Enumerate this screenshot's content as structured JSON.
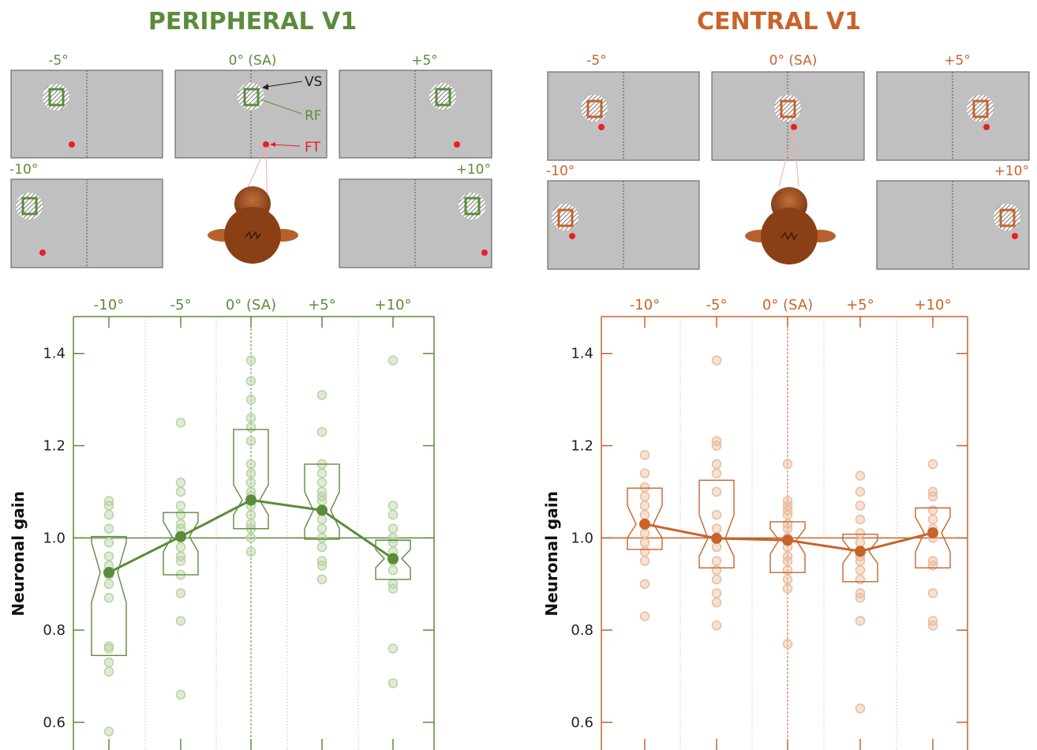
{
  "colors": {
    "peripheral": "#5b8c3a",
    "peripheral_light": "#b9d3a4",
    "central": "#c8632a",
    "central_light": "#eabd9e",
    "monitor_fill": "#c0c0c0",
    "fixation": "#ee1c24",
    "head": "#9a4a1c"
  },
  "panels": [
    {
      "id": "peripheral",
      "title": "PERIPHERAL V1",
      "monitor_labels": {
        "m5": "-5°",
        "c0": "0° (SA)",
        "p5": "+5°",
        "m10": "-10°",
        "p10": "+10°"
      },
      "legend": {
        "vs": "VS",
        "rf": "RF",
        "ft": "FT"
      },
      "chart_data": {
        "type": "boxplot",
        "categories": [
          "-10°",
          "-5°",
          "0° (SA)",
          "+5°",
          "+10°"
        ],
        "ylabel": "Neuronal gain",
        "ylim": [
          0.54,
          1.48
        ],
        "yticks": [
          "0.6",
          "0.8",
          "1.0",
          "1.2",
          "1.4"
        ],
        "reference_line": 1.0,
        "medians": [
          0.925,
          1.003,
          1.082,
          1.06,
          0.955
        ],
        "boxes": [
          {
            "q1": 0.745,
            "q3": 1.003,
            "notch_lo": 0.86,
            "notch_hi": 0.99
          },
          {
            "q1": 0.92,
            "q3": 1.055,
            "notch_lo": 0.97,
            "notch_hi": 1.035
          },
          {
            "q1": 1.02,
            "q3": 1.235,
            "notch_lo": 1.05,
            "notch_hi": 1.115
          },
          {
            "q1": 0.997,
            "q3": 1.16,
            "notch_lo": 1.02,
            "notch_hi": 1.1
          },
          {
            "q1": 0.91,
            "q3": 0.995,
            "notch_lo": 0.935,
            "notch_hi": 0.975
          }
        ],
        "points": [
          [
            1.08,
            1.07,
            1.05,
            1.02,
            0.99,
            0.96,
            0.94,
            0.92,
            0.9,
            0.87,
            0.765,
            0.76,
            0.73,
            0.71,
            0.58
          ],
          [
            1.25,
            1.12,
            1.1,
            1.07,
            1.05,
            1.03,
            1.02,
            1.0,
            0.98,
            0.96,
            0.95,
            0.92,
            0.88,
            0.82,
            0.66
          ],
          [
            1.385,
            1.34,
            1.3,
            1.26,
            1.24,
            1.21,
            1.16,
            1.14,
            1.12,
            1.1,
            1.09,
            1.07,
            1.05,
            1.03,
            1.02,
            1.0,
            0.97
          ],
          [
            1.31,
            1.23,
            1.16,
            1.14,
            1.12,
            1.1,
            1.09,
            1.08,
            1.06,
            1.04,
            1.02,
            1.0,
            0.98,
            0.95,
            0.94,
            0.91
          ],
          [
            1.385,
            1.07,
            1.05,
            1.02,
            1.0,
            0.99,
            0.97,
            0.95,
            0.93,
            0.9,
            0.89,
            0.76,
            0.685
          ]
        ]
      }
    },
    {
      "id": "central",
      "title": "CENTRAL V1",
      "monitor_labels": {
        "m5": "-5°",
        "c0": "0° (SA)",
        "p5": "+5°",
        "m10": "-10°",
        "p10": "+10°"
      },
      "chart_data": {
        "type": "boxplot",
        "categories": [
          "-10°",
          "-5°",
          "0° (SA)",
          "+5°",
          "+10°"
        ],
        "ylabel": "Neuronal gain",
        "ylim": [
          0.54,
          1.48
        ],
        "yticks": [
          "0.6",
          "0.8",
          "1.0",
          "1.2",
          "1.4"
        ],
        "reference_line": 1.0,
        "medians": [
          1.03,
          0.999,
          0.995,
          0.971,
          1.011
        ],
        "boxes": [
          {
            "q1": 0.975,
            "q3": 1.108,
            "notch_lo": 1.0,
            "notch_hi": 1.07
          },
          {
            "q1": 0.935,
            "q3": 1.125,
            "notch_lo": 0.96,
            "notch_hi": 1.05
          },
          {
            "q1": 0.925,
            "q3": 1.035,
            "notch_lo": 0.965,
            "notch_hi": 1.02
          },
          {
            "q1": 0.905,
            "q3": 1.008,
            "notch_lo": 0.945,
            "notch_hi": 0.995
          },
          {
            "q1": 0.935,
            "q3": 1.065,
            "notch_lo": 0.97,
            "notch_hi": 1.045
          }
        ],
        "points": [
          [
            1.18,
            1.14,
            1.11,
            1.09,
            1.07,
            1.05,
            1.03,
            1.01,
            0.99,
            0.97,
            0.95,
            0.9,
            0.83
          ],
          [
            1.385,
            1.21,
            1.2,
            1.16,
            1.14,
            1.1,
            1.05,
            1.02,
            1.0,
            0.98,
            0.95,
            0.93,
            0.91,
            0.88,
            0.86,
            0.81
          ],
          [
            1.16,
            1.08,
            1.07,
            1.06,
            1.05,
            1.03,
            1.02,
            1.0,
            0.98,
            0.96,
            0.95,
            0.93,
            0.91,
            0.89,
            0.77
          ],
          [
            1.135,
            1.1,
            1.07,
            1.04,
            1.01,
            0.99,
            0.97,
            0.96,
            0.95,
            0.93,
            0.91,
            0.88,
            0.87,
            0.82,
            0.63
          ],
          [
            1.16,
            1.1,
            1.09,
            1.06,
            1.04,
            1.02,
            1.0,
            0.95,
            0.94,
            0.88,
            0.82,
            0.81
          ]
        ]
      }
    }
  ]
}
